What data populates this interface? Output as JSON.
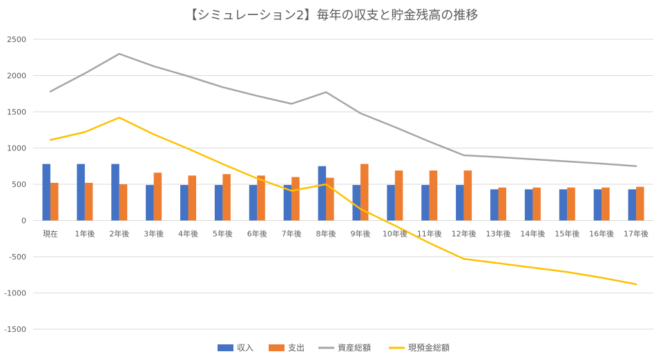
{
  "chart_data": {
    "type": "bar",
    "title": "【シミュレーション2】毎年の収支と貯金残高の推移",
    "xlabel": "",
    "ylabel": "",
    "ylim": [
      -1500,
      2500
    ],
    "yticks": [
      2500,
      2000,
      1500,
      1000,
      500,
      0,
      -500,
      -1000,
      -1500
    ],
    "grid": true,
    "legend_position": "bottom",
    "categories": [
      "現在",
      "1年後",
      "2年後",
      "3年後",
      "4年後",
      "5年後",
      "6年後",
      "7年後",
      "8年後",
      "9年後",
      "10年後",
      "11年後",
      "12年後",
      "13年後",
      "14年後",
      "15年後",
      "16年後",
      "17年後"
    ],
    "series": [
      {
        "name": "収入",
        "kind": "bar",
        "color": "#4472C4",
        "values": [
          780,
          780,
          780,
          490,
          490,
          490,
          490,
          490,
          750,
          490,
          490,
          490,
          490,
          430,
          430,
          430,
          430,
          430
        ]
      },
      {
        "name": "支出",
        "kind": "bar",
        "color": "#ED7D31",
        "values": [
          520,
          520,
          500,
          660,
          620,
          640,
          620,
          600,
          590,
          780,
          690,
          690,
          690,
          455,
          455,
          455,
          455,
          465
        ]
      },
      {
        "name": "資産総額",
        "kind": "line",
        "color": "#A5A5A5",
        "values": [
          1780,
          2030,
          2300,
          2130,
          1990,
          1840,
          1720,
          1610,
          1770,
          1480,
          1290,
          1090,
          900,
          875,
          845,
          815,
          785,
          750
        ]
      },
      {
        "name": "現預金総額",
        "kind": "line",
        "color": "#FFC000",
        "values": [
          1110,
          1220,
          1420,
          1190,
          990,
          780,
          580,
          410,
          500,
          160,
          -70,
          -310,
          -530,
          -590,
          -650,
          -710,
          -790,
          -880
        ]
      }
    ]
  }
}
